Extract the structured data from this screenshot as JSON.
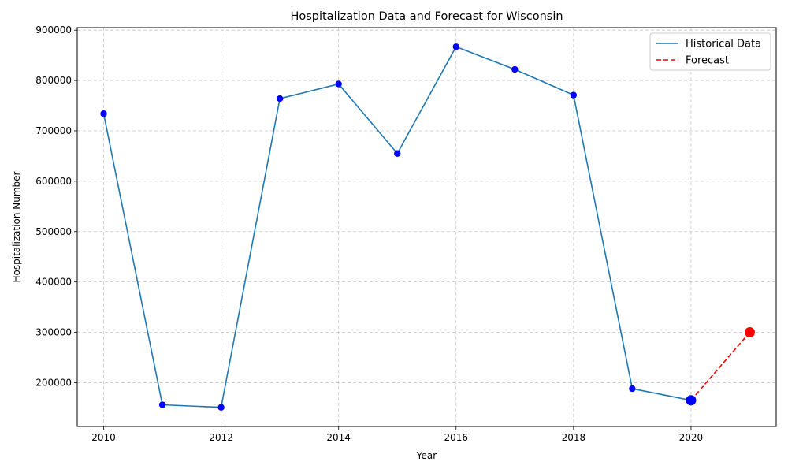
{
  "chart_data": {
    "type": "line",
    "title": "Hospitalization Data and Forecast for Wisconsin",
    "xlabel": "Year",
    "ylabel": "Hospitalization Number",
    "xlim": [
      2009.55,
      2021.45
    ],
    "ylim": [
      113000,
      905000
    ],
    "xticks": [
      2010,
      2012,
      2014,
      2016,
      2018,
      2020
    ],
    "yticks": [
      200000,
      300000,
      400000,
      500000,
      600000,
      700000,
      800000,
      900000
    ],
    "grid": true,
    "legend_position": "top-right",
    "series": [
      {
        "name": "Historical Data",
        "style": "solid",
        "color": "#1f77b4",
        "marker_color": "#0000ff",
        "x": [
          2010,
          2011,
          2012,
          2013,
          2014,
          2015,
          2016,
          2017,
          2018,
          2019,
          2020
        ],
        "y": [
          734000,
          156000,
          151000,
          764000,
          793000,
          655000,
          867000,
          822000,
          771000,
          188000,
          165000
        ]
      },
      {
        "name": "Forecast",
        "style": "dashed",
        "color": "#ff0000",
        "marker_color": "#ff0000",
        "x": [
          2020,
          2021
        ],
        "y": [
          165000,
          300000
        ]
      }
    ]
  }
}
